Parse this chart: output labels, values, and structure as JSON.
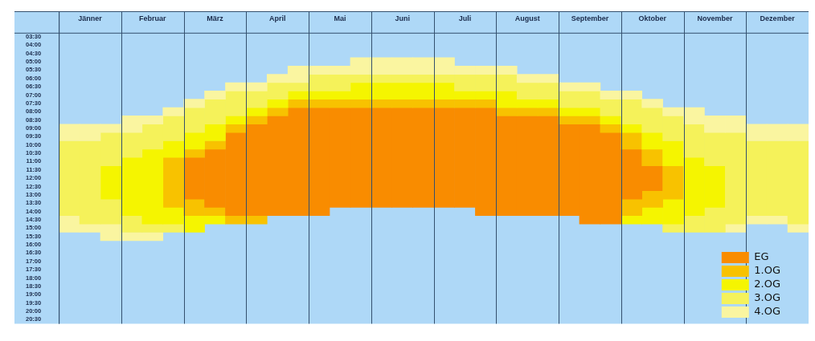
{
  "chart_data": {
    "type": "bar",
    "categories": [
      null,
      "Jänner",
      null,
      null,
      "Februar",
      null,
      null,
      "März",
      null,
      null,
      "April",
      null,
      null,
      "Mai",
      null,
      null,
      "Juni",
      null,
      null,
      "Juli",
      null,
      null,
      "August",
      null,
      null,
      "September",
      null,
      null,
      "Oktober",
      null,
      null,
      "November",
      null,
      null,
      "Dezember",
      null
    ],
    "series": [
      {
        "name": "4.OG",
        "color": "#faf5a0",
        "base": [
          8.75,
          8.75,
          8.75,
          8.25,
          8.25,
          7.75,
          7.25,
          6.75,
          6.25,
          6.25,
          5.75,
          5.25,
          5.25,
          5.25,
          4.75,
          4.75,
          4.75,
          4.75,
          4.75,
          5.25,
          5.25,
          5.25,
          5.75,
          5.75,
          6.25,
          6.25,
          6.75,
          6.75,
          7.25,
          7.75,
          7.75,
          8.25,
          8.25,
          8.75,
          8.75,
          8.75
        ],
        "values": [
          1,
          1,
          0.5,
          1,
          0.5,
          0.5,
          0.5,
          0.5,
          0.5,
          0.5,
          0.5,
          1,
          0.5,
          0.5,
          1,
          1,
          1,
          1,
          1,
          0.5,
          0.5,
          0.5,
          0.5,
          0.5,
          0.5,
          0.5,
          0.5,
          0.5,
          0.5,
          0.5,
          1,
          1,
          1,
          1,
          1,
          1
        ]
      },
      {
        "name": "3.OG",
        "color": "#f5f25a",
        "base": [
          9.75,
          9.75,
          9.25,
          9.25,
          8.75,
          8.25,
          7.75,
          7.25,
          6.75,
          6.75,
          6.25,
          6.25,
          5.75,
          5.75,
          5.75,
          5.75,
          5.75,
          5.75,
          5.75,
          5.75,
          5.75,
          5.75,
          6.25,
          6.25,
          6.75,
          6.75,
          7.25,
          7.25,
          7.75,
          8.25,
          8.75,
          9.25,
          9.25,
          9.75,
          9.75,
          9.75
        ],
        "values": [
          4.5,
          5,
          2,
          1.5,
          1.5,
          1.5,
          1.5,
          1.5,
          1.5,
          1,
          1,
          0.5,
          1,
          1,
          0.5,
          0.5,
          0.5,
          0.5,
          0.5,
          1,
          1,
          1,
          1,
          1,
          1,
          1,
          1,
          1.5,
          1.5,
          1.5,
          2,
          2,
          5.5,
          4.5,
          4.5,
          5
        ]
      },
      {
        "name": "2.OG",
        "color": "#f5f500",
        "base": [
          null,
          null,
          11.25,
          10.75,
          10.25,
          9.75,
          9.25,
          8.75,
          8.25,
          7.75,
          7.25,
          6.75,
          6.75,
          6.75,
          6.25,
          6.25,
          6.25,
          6.25,
          6.25,
          6.75,
          6.75,
          6.75,
          7.25,
          7.25,
          7.75,
          7.75,
          8.25,
          8.75,
          9.25,
          9.75,
          10.75,
          11.25,
          null,
          null,
          null,
          null
        ],
        "values": [
          null,
          null,
          2,
          3.5,
          4.5,
          1,
          1,
          1,
          0.5,
          0.5,
          0.5,
          0.5,
          0.5,
          0.5,
          1,
          1,
          1,
          1,
          1,
          0.5,
          0.5,
          1,
          0.5,
          0.5,
          0.5,
          0.5,
          0.5,
          0.5,
          1,
          1.5,
          3.5,
          2.5,
          null,
          null,
          null,
          null
        ]
      },
      {
        "name": "1.OG",
        "color": "#f8c200",
        "base": [
          null,
          null,
          null,
          null,
          null,
          10.75,
          10.25,
          9.75,
          8.75,
          8.25,
          7.75,
          7.25,
          7.25,
          7.25,
          7.25,
          7.25,
          7.25,
          7.25,
          7.25,
          7.25,
          7.25,
          7.75,
          7.75,
          7.75,
          8.25,
          8.25,
          8.75,
          9.25,
          10.25,
          11.25,
          null,
          null,
          null,
          null,
          null,
          null
        ],
        "values": [
          null,
          null,
          null,
          null,
          null,
          3,
          0.5,
          0.5,
          0.5,
          0.5,
          0.5,
          0.5,
          0.5,
          0.5,
          0.5,
          0.5,
          0.5,
          0.5,
          0.5,
          0.5,
          0.5,
          0.5,
          0.5,
          0.5,
          0.5,
          0.5,
          0.5,
          1,
          1,
          2,
          null,
          null,
          null,
          null,
          null,
          null
        ]
      },
      {
        "name": "EG",
        "color": "#f98c00",
        "base": [
          null,
          null,
          null,
          null,
          null,
          null,
          10.75,
          10.25,
          9.25,
          8.75,
          8.25,
          7.75,
          7.75,
          7.75,
          7.75,
          7.75,
          7.75,
          7.75,
          7.75,
          7.75,
          7.75,
          8.25,
          8.25,
          8.25,
          8.75,
          8.75,
          9.25,
          10.25,
          11.25,
          null,
          null,
          null,
          null,
          null,
          null,
          null
        ],
        "values": [
          null,
          null,
          null,
          null,
          null,
          null,
          2.5,
          3.5,
          5,
          5.5,
          6,
          6.5,
          6.5,
          6,
          6,
          6,
          6,
          6,
          6,
          6,
          6.5,
          6,
          6,
          6,
          5.5,
          6,
          5.5,
          3,
          1.5,
          null,
          null,
          null,
          null,
          null,
          null,
          null
        ]
      },
      {
        "color": "#f8c200",
        "base": [
          null,
          null,
          null,
          null,
          null,
          null,
          13.25,
          13.75,
          14.25,
          14.25,
          null,
          null,
          null,
          null,
          null,
          null,
          null,
          null,
          null,
          null,
          null,
          null,
          null,
          null,
          null,
          null,
          null,
          13.25,
          12.75,
          null,
          null,
          null,
          null,
          null,
          null,
          null
        ],
        "values": [
          null,
          null,
          null,
          null,
          null,
          null,
          1,
          0.5,
          0.5,
          0.5,
          null,
          null,
          null,
          null,
          null,
          null,
          null,
          null,
          null,
          null,
          null,
          null,
          null,
          null,
          null,
          null,
          null,
          1,
          1,
          null,
          null,
          null,
          null,
          null,
          null,
          null
        ]
      },
      {
        "color": "#f5f500",
        "base": [
          null,
          null,
          null,
          null,
          null,
          13.75,
          14.25,
          14.25,
          null,
          null,
          null,
          null,
          null,
          null,
          null,
          null,
          null,
          null,
          null,
          null,
          null,
          null,
          null,
          null,
          null,
          null,
          null,
          14.25,
          13.75,
          13.25,
          null,
          null,
          null,
          null,
          null,
          null
        ],
        "values": [
          null,
          null,
          null,
          null,
          null,
          1,
          1,
          0.5,
          null,
          null,
          null,
          null,
          null,
          null,
          null,
          null,
          null,
          null,
          null,
          null,
          null,
          null,
          null,
          null,
          null,
          null,
          null,
          0.5,
          1,
          1.5,
          null,
          null,
          null,
          null,
          null,
          null
        ]
      },
      {
        "color": "#f5f25a",
        "base": [
          null,
          null,
          13.25,
          14.25,
          14.75,
          14.75,
          null,
          null,
          null,
          null,
          null,
          null,
          null,
          null,
          null,
          null,
          null,
          null,
          null,
          null,
          null,
          null,
          null,
          null,
          null,
          null,
          null,
          null,
          null,
          14.75,
          14.25,
          13.75,
          null,
          null,
          null,
          null
        ],
        "values": [
          null,
          null,
          1.5,
          1,
          0.5,
          0.5,
          null,
          null,
          null,
          null,
          null,
          null,
          null,
          null,
          null,
          null,
          null,
          null,
          null,
          null,
          null,
          null,
          null,
          null,
          null,
          null,
          null,
          null,
          null,
          0.5,
          1,
          1.5,
          null,
          null,
          null,
          null
        ]
      },
      {
        "color": "#faf5a0",
        "base": [
          14.25,
          14.75,
          14.75,
          15.25,
          15.25,
          null,
          null,
          null,
          null,
          null,
          null,
          null,
          null,
          null,
          null,
          null,
          null,
          null,
          null,
          null,
          null,
          null,
          null,
          null,
          null,
          null,
          null,
          null,
          null,
          null,
          null,
          null,
          14.75,
          14.25,
          14.25,
          14.75
        ],
        "values": [
          1,
          0.5,
          1,
          0.5,
          0.5,
          null,
          null,
          null,
          null,
          null,
          null,
          null,
          null,
          null,
          null,
          null,
          null,
          null,
          null,
          null,
          null,
          null,
          null,
          null,
          null,
          null,
          null,
          null,
          null,
          null,
          null,
          null,
          0.5,
          0.5,
          0.5,
          0.5
        ]
      }
    ],
    "ylim": [
      20.75,
      3.25
    ],
    "yticks": [
      {
        "value": 3.5,
        "label": "03:30"
      },
      {
        "value": 4,
        "label": "04:00"
      },
      {
        "value": 4.5,
        "label": "04:30"
      },
      {
        "value": 5,
        "label": "05:00"
      },
      {
        "value": 5.5,
        "label": "05:30"
      },
      {
        "value": 6,
        "label": "06:00"
      },
      {
        "value": 6.5,
        "label": "06:30"
      },
      {
        "value": 7,
        "label": "07:00"
      },
      {
        "value": 7.5,
        "label": "07:30"
      },
      {
        "value": 8,
        "label": "08:00"
      },
      {
        "value": 8.5,
        "label": "08:30"
      },
      {
        "value": 9,
        "label": "09:00"
      },
      {
        "value": 9.5,
        "label": "09:30"
      },
      {
        "value": 10,
        "label": "10:00"
      },
      {
        "value": 10.5,
        "label": "10:30"
      },
      {
        "value": 11,
        "label": "11:00"
      },
      {
        "value": 11.5,
        "label": "11:30"
      },
      {
        "value": 12,
        "label": "12:00"
      },
      {
        "value": 12.5,
        "label": "12:30"
      },
      {
        "value": 13,
        "label": "13:00"
      },
      {
        "value": 13.5,
        "label": "13:30"
      },
      {
        "value": 14,
        "label": "14:00"
      },
      {
        "value": 14.5,
        "label": "14:30"
      },
      {
        "value": 15,
        "label": "15:00"
      },
      {
        "value": 15.5,
        "label": "15:30"
      },
      {
        "value": 16,
        "label": "16:00"
      },
      {
        "value": 16.5,
        "label": "16:30"
      },
      {
        "value": 17,
        "label": "17:00"
      },
      {
        "value": 17.5,
        "label": "17:30"
      },
      {
        "value": 18,
        "label": "18:00"
      },
      {
        "value": 18.5,
        "label": "18:30"
      },
      {
        "value": 19,
        "label": "19:00"
      },
      {
        "value": 19.5,
        "label": "19:30"
      },
      {
        "value": 20,
        "label": "20:00"
      },
      {
        "value": 20.5,
        "label": "20:30"
      }
    ],
    "legend": "bottom right",
    "grid": "x"
  }
}
